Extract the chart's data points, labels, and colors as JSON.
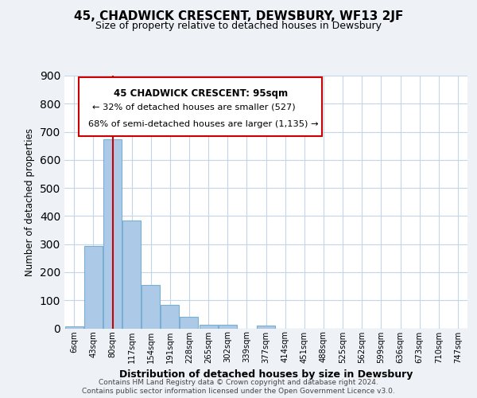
{
  "title": "45, CHADWICK CRESCENT, DEWSBURY, WF13 2JF",
  "subtitle": "Size of property relative to detached houses in Dewsbury",
  "xlabel": "Distribution of detached houses by size in Dewsbury",
  "ylabel": "Number of detached properties",
  "bar_labels": [
    "6sqm",
    "43sqm",
    "80sqm",
    "117sqm",
    "154sqm",
    "191sqm",
    "228sqm",
    "265sqm",
    "302sqm",
    "339sqm",
    "377sqm",
    "414sqm",
    "451sqm",
    "488sqm",
    "525sqm",
    "562sqm",
    "599sqm",
    "636sqm",
    "673sqm",
    "710sqm",
    "747sqm"
  ],
  "bar_values": [
    8,
    293,
    672,
    384,
    155,
    85,
    40,
    14,
    12,
    0,
    10,
    0,
    0,
    0,
    0,
    0,
    0,
    0,
    0,
    0,
    0
  ],
  "bar_color": "#adc9e8",
  "bar_edge_color": "#7aafd4",
  "vline_x_index": 2,
  "vline_color": "#cc0000",
  "annotation_title": "45 CHADWICK CRESCENT: 95sqm",
  "annotation_line1": "← 32% of detached houses are smaller (527)",
  "annotation_line2": "68% of semi-detached houses are larger (1,135) →",
  "annotation_box_color": "#ffffff",
  "annotation_box_edge": "#cc0000",
  "ylim": [
    0,
    900
  ],
  "yticks": [
    0,
    100,
    200,
    300,
    400,
    500,
    600,
    700,
    800,
    900
  ],
  "footer_line1": "Contains HM Land Registry data © Crown copyright and database right 2024.",
  "footer_line2": "Contains public sector information licensed under the Open Government Licence v3.0.",
  "bg_color": "#eef2f7",
  "plot_bg_color": "#ffffff",
  "grid_color": "#c5d5e8"
}
